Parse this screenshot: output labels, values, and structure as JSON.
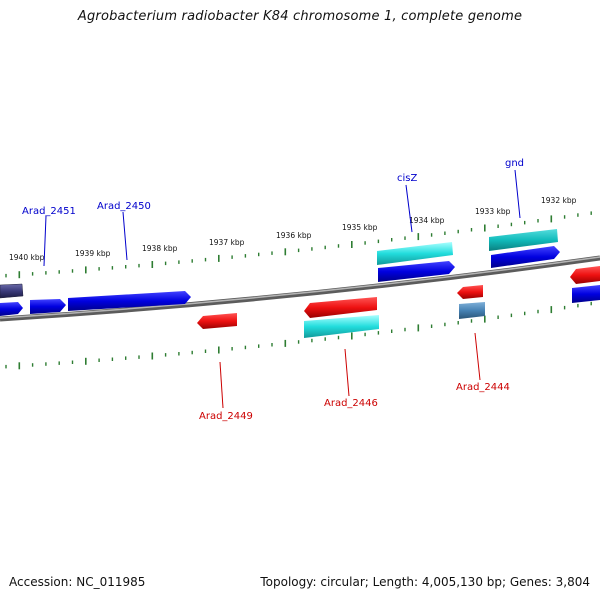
{
  "title": "Agrobacterium radiobacter K84 chromosome 1, complete genome",
  "footer": {
    "accession": "Accession: NC_011985",
    "summary": "Topology: circular; Length: 4,005,130 bp; Genes: 3,804"
  },
  "ticks": [
    "1940 kbp",
    "1939 kbp",
    "1938 kbp",
    "1937 kbp",
    "1936 kbp",
    "1935 kbp",
    "1934 kbp",
    "1933 kbp",
    "1932 kbp"
  ],
  "gene_labels": {
    "forward": [
      "Arad_2451",
      "Arad_2450",
      "cisZ",
      "gnd"
    ],
    "reverse": [
      "Arad_2449",
      "Arad_2446",
      "Arad_2444"
    ]
  },
  "colors": {
    "backbone": "#7a7a7a",
    "tick": "#2e7d32",
    "forward_gene": "#0000e0",
    "reverse_gene": "#ee1111",
    "cyan_gene": "#22dddd",
    "dark_gene": "#3a3a7a",
    "steel_gene": "#4682b4",
    "forward_label": "#0000cc",
    "reverse_label": "#cc0000"
  }
}
